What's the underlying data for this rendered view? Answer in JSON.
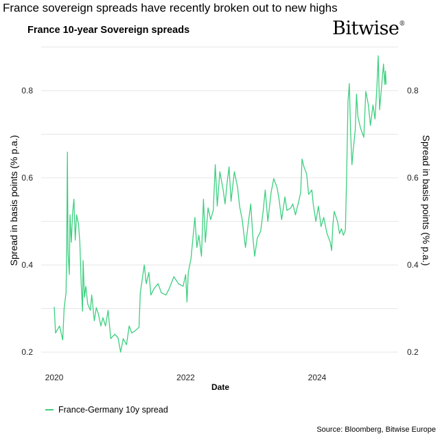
{
  "headline": "France sovereign spreads have recently broken out to new highs",
  "logo": "Bitwise",
  "source": "Source: Bloomberg, Bitwise Europe",
  "colors": {
    "series": "#3ccf7f",
    "grid": "#e6e6e6"
  },
  "chart_data": {
    "type": "line",
    "title": "France 10-year Sovereign  spreads",
    "xlabel": "Date",
    "ylabel": "Spread in basis points (% p.a.)",
    "ylabel_right": "Spread in basis points (% p.a.)",
    "xlim": [
      2019.8,
      2025.2
    ],
    "ylim": [
      0.2,
      0.9
    ],
    "x_ticks": [
      {
        "value": 2020,
        "label": "2020"
      },
      {
        "value": 2022,
        "label": "2022"
      },
      {
        "value": 2024,
        "label": "2024"
      }
    ],
    "y_ticks": [
      {
        "value": 0.2,
        "label": "0.2"
      },
      {
        "value": 0.4,
        "label": "0.4"
      },
      {
        "value": 0.6,
        "label": "0.6"
      },
      {
        "value": 0.8,
        "label": "0.8"
      }
    ],
    "grid": true,
    "legend_position": "bottom-left",
    "series": [
      {
        "name": "France-Germany 10y spread",
        "x": [
          2020.0,
          2020.02,
          2020.08,
          2020.13,
          2020.15,
          2020.18,
          2020.19,
          2020.2,
          2020.21,
          2020.23,
          2020.24,
          2020.26,
          2020.28,
          2020.3,
          2020.32,
          2020.34,
          2020.37,
          2020.39,
          2020.41,
          2020.43,
          2020.44,
          2020.46,
          2020.48,
          2020.51,
          2020.55,
          2020.57,
          2020.61,
          2020.64,
          2020.67,
          2020.71,
          2020.74,
          2020.78,
          2020.82,
          2020.86,
          2020.92,
          2020.97,
          2021.01,
          2021.05,
          2021.1,
          2021.14,
          2021.18,
          2021.23,
          2021.29,
          2021.31,
          2021.33,
          2021.37,
          2021.4,
          2021.44,
          2021.47,
          2021.52,
          2021.58,
          2021.63,
          2021.7,
          2021.75,
          2021.82,
          2021.89,
          2021.96,
          2022.0,
          2022.02,
          2022.04,
          2022.08,
          2022.12,
          2022.14,
          2022.17,
          2022.2,
          2022.24,
          2022.27,
          2022.3,
          2022.34,
          2022.38,
          2022.42,
          2022.45,
          2022.48,
          2022.52,
          2022.57,
          2022.6,
          2022.63,
          2022.66,
          2022.69,
          2022.74,
          2022.79,
          2022.82,
          2022.86,
          2022.91,
          2022.95,
          2022.99,
          2023.02,
          2023.05,
          2023.09,
          2023.14,
          2023.18,
          2023.21,
          2023.25,
          2023.3,
          2023.34,
          2023.39,
          2023.42,
          2023.46,
          2023.51,
          2023.54,
          2023.6,
          2023.63,
          2023.67,
          2023.72,
          2023.75,
          2023.77,
          2023.8,
          2023.84,
          2023.87,
          2023.92,
          2023.94,
          2023.98,
          2024.02,
          2024.06,
          2024.1,
          2024.15,
          2024.2,
          2024.22,
          2024.24,
          2024.26,
          2024.31,
          2024.34,
          2024.37,
          2024.4,
          2024.43,
          2024.45,
          2024.47,
          2024.49,
          2024.51,
          2024.53,
          2024.55,
          2024.58,
          2024.6,
          2024.62,
          2024.66,
          2024.71,
          2024.74,
          2024.78,
          2024.81,
          2024.85,
          2024.88,
          2024.91,
          2024.93,
          2024.95,
          2024.98,
          2025.01,
          2025.03,
          2025.04,
          2025.05
        ],
        "y": [
          0.304,
          0.244,
          0.26,
          0.228,
          0.3,
          0.336,
          0.44,
          0.659,
          0.43,
          0.378,
          0.515,
          0.452,
          0.52,
          0.551,
          0.457,
          0.515,
          0.493,
          0.452,
          0.357,
          0.294,
          0.41,
          0.326,
          0.351,
          0.31,
          0.296,
          0.331,
          0.272,
          0.302,
          0.288,
          0.26,
          0.279,
          0.26,
          0.296,
          0.231,
          0.241,
          0.233,
          0.2,
          0.231,
          0.217,
          0.26,
          0.244,
          0.249,
          0.257,
          0.336,
          0.357,
          0.4,
          0.357,
          0.383,
          0.331,
          0.346,
          0.357,
          0.336,
          0.331,
          0.346,
          0.373,
          0.357,
          0.351,
          0.378,
          0.315,
          0.383,
          0.414,
          0.477,
          0.509,
          0.44,
          0.468,
          0.42,
          0.551,
          0.452,
          0.531,
          0.504,
          0.525,
          0.63,
          0.535,
          0.614,
          0.572,
          0.54,
          0.588,
          0.625,
          0.546,
          0.614,
          0.578,
          0.535,
          0.504,
          0.44,
          0.493,
          0.54,
          0.468,
          0.42,
          0.462,
          0.477,
          0.525,
          0.572,
          0.5,
          0.567,
          0.598,
          0.578,
          0.551,
          0.504,
          0.556,
          0.525,
          0.531,
          0.54,
          0.515,
          0.546,
          0.567,
          0.643,
          0.625,
          0.609,
          0.562,
          0.572,
          0.54,
          0.5,
          0.535,
          0.488,
          0.509,
          0.472,
          0.452,
          0.433,
          0.493,
          0.523,
          0.5,
          0.472,
          0.483,
          0.468,
          0.48,
          0.614,
          0.776,
          0.816,
          0.704,
          0.63,
          0.666,
          0.709,
          0.792,
          0.74,
          0.714,
          0.693,
          0.798,
          0.767,
          0.72,
          0.767,
          0.735,
          0.808,
          0.88,
          0.756,
          0.808,
          0.861,
          0.814,
          0.845,
          0.814
        ]
      }
    ]
  }
}
